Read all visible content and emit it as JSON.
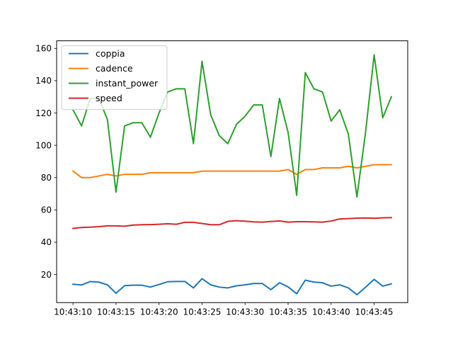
{
  "chart_data": {
    "type": "line",
    "title": "",
    "xlabel": "",
    "ylabel": "",
    "x": [
      "10:43:10",
      "10:43:11",
      "10:43:12",
      "10:43:13",
      "10:43:14",
      "10:43:15",
      "10:43:16",
      "10:43:17",
      "10:43:18",
      "10:43:19",
      "10:43:20",
      "10:43:21",
      "10:43:22",
      "10:43:23",
      "10:43:24",
      "10:43:25",
      "10:43:26",
      "10:43:27",
      "10:43:28",
      "10:43:29",
      "10:43:30",
      "10:43:31",
      "10:43:32",
      "10:43:33",
      "10:43:34",
      "10:43:35",
      "10:43:36",
      "10:43:37",
      "10:43:38",
      "10:43:39",
      "10:43:40",
      "10:43:41",
      "10:43:42",
      "10:43:43",
      "10:43:44",
      "10:43:45",
      "10:43:46",
      "10:43:47"
    ],
    "xticks": [
      "10:43:10",
      "10:43:15",
      "10:43:20",
      "10:43:25",
      "10:43:30",
      "10:43:35",
      "10:43:40",
      "10:43:45"
    ],
    "xlim": [
      "10:43:08.1",
      "10:43:48.9"
    ],
    "ylim": [
      2.6,
      164.7
    ],
    "yticks": [
      20,
      40,
      60,
      80,
      100,
      120,
      140,
      160
    ],
    "grid": false,
    "legend": "upper left",
    "series": [
      {
        "name": "coppia",
        "color": "#1f77b4",
        "values": [
          14,
          13.5,
          15.6,
          15.3,
          13.6,
          8.4,
          13.1,
          13.4,
          13.4,
          12.2,
          13.8,
          15.5,
          15.7,
          15.7,
          11.7,
          17.4,
          13.6,
          12.2,
          11.7,
          13,
          13.6,
          14.4,
          14.4,
          10.6,
          14.9,
          12.3,
          8.1,
          16.5,
          15.3,
          14.9,
          12.8,
          13.6,
          11.7,
          7.5,
          12.1,
          17,
          12.8,
          14.2
        ]
      },
      {
        "name": "cadence",
        "color": "#ff7f0e",
        "values": [
          84,
          80,
          80,
          81,
          82,
          81,
          82,
          82,
          82,
          83,
          83,
          83,
          83,
          83,
          83,
          84,
          84,
          84,
          84,
          84,
          84,
          84,
          84,
          84,
          84,
          85,
          82,
          85,
          85,
          86,
          86,
          86,
          87,
          86,
          87,
          88,
          88,
          88
        ]
      },
      {
        "name": "instant_power",
        "color": "#2ca02c",
        "values": [
          122,
          112,
          129,
          129,
          116,
          71,
          112,
          114,
          114,
          105,
          120,
          133,
          135,
          135,
          101,
          152,
          119,
          106,
          101,
          113,
          118,
          125,
          125,
          93,
          129,
          108,
          69,
          145,
          135,
          133,
          115,
          122,
          107,
          68,
          108,
          156,
          117,
          130
        ]
      },
      {
        "name": "speed",
        "color": "#d62728",
        "values": [
          48.5,
          49.1,
          49.3,
          49.6,
          50.1,
          50.1,
          49.9,
          50.6,
          50.8,
          50.9,
          51.1,
          51.4,
          51.1,
          52.3,
          52.3,
          51.6,
          50.8,
          50.8,
          52.9,
          53.3,
          53,
          52.6,
          52.4,
          52.8,
          53.2,
          52.4,
          52.7,
          52.7,
          52.6,
          52.4,
          53.1,
          54.4,
          54.6,
          54.9,
          55,
          54.8,
          55.1,
          55.2
        ]
      }
    ]
  }
}
